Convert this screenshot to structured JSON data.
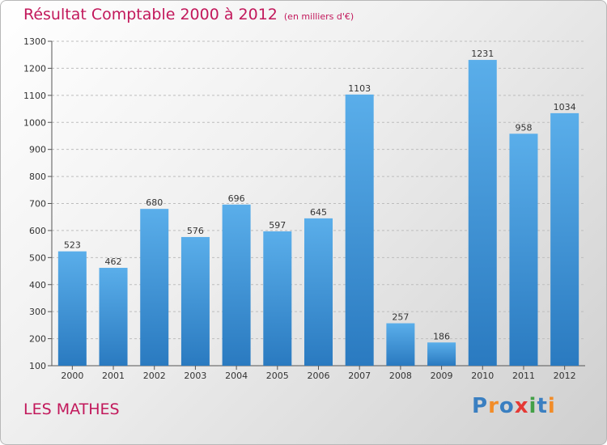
{
  "title": "Résultat Comptable 2000 à 2012",
  "subtitle": "(en milliers d'€)",
  "place": "LES MATHES",
  "logo": {
    "text": "Proxiti",
    "letters": [
      {
        "ch": "P",
        "color": "#3a7fc1"
      },
      {
        "ch": "r",
        "color": "#f28c28"
      },
      {
        "ch": "o",
        "color": "#3a7fc1"
      },
      {
        "ch": "x",
        "color": "#e53935"
      },
      {
        "ch": "i",
        "color": "#43a047"
      },
      {
        "ch": "t",
        "color": "#3a7fc1"
      },
      {
        "ch": "i",
        "color": "#f28c28"
      }
    ]
  },
  "colors": {
    "bar_top": "#5aaeea",
    "bar_bottom": "#2a7ac0",
    "title": "#c2185b",
    "grid": "#bdbdbd"
  },
  "chart_data": {
    "type": "bar",
    "title": "Résultat Comptable 2000 à 2012",
    "subtitle": "(en milliers d'€)",
    "xlabel": "",
    "ylabel": "",
    "categories": [
      "2000",
      "2001",
      "2002",
      "2003",
      "2004",
      "2005",
      "2006",
      "2007",
      "2008",
      "2009",
      "2010",
      "2011",
      "2012"
    ],
    "values": [
      523,
      462,
      680,
      576,
      696,
      597,
      645,
      1103,
      257,
      186,
      1231,
      958,
      1034
    ],
    "ylim": [
      100,
      1300
    ],
    "yticks": [
      100,
      200,
      300,
      400,
      500,
      600,
      700,
      800,
      900,
      1000,
      1100,
      1200,
      1300
    ],
    "grid": true
  }
}
